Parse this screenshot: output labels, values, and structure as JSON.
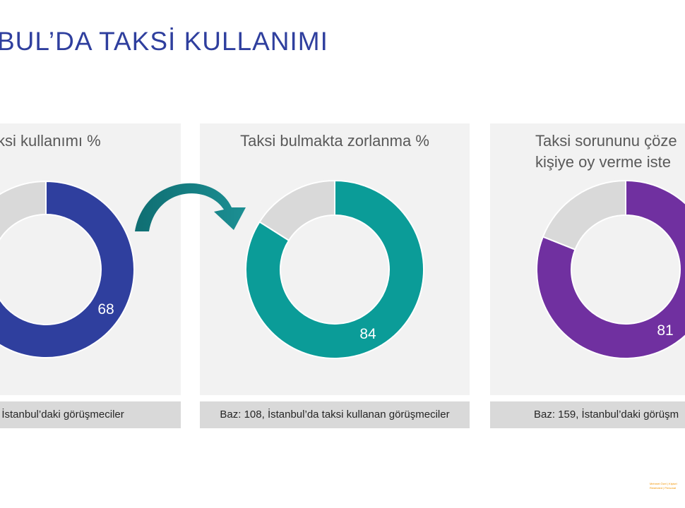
{
  "title": "BUL’DA TAKSİ KULLANIMI",
  "chart_data": [
    {
      "type": "pie",
      "title": "ksi kullanımı %",
      "values": [
        68,
        32
      ],
      "value_label": "68",
      "colors": [
        "#2f3f9e",
        "#d9d9d9"
      ],
      "base": ", İstanbul’daki görüşmeciler"
    },
    {
      "type": "pie",
      "title": "Taksi bulmakta zorlanma %",
      "values": [
        84,
        16
      ],
      "value_label": "84",
      "colors": [
        "#0b9c98",
        "#d9d9d9"
      ],
      "base": "Baz: 108, İstanbul’da taksi kullanan görüşmeciler"
    },
    {
      "type": "pie",
      "title": "Taksi sorununu çöze\nkişiye oy verme iste",
      "title_lines": [
        "Taksi sorununu çöze",
        "kişiye oy verme iste"
      ],
      "values": [
        81,
        19
      ],
      "value_label": "81",
      "colors": [
        "#7030a0",
        "#d9d9d9"
      ],
      "base": "Baz: 159, İstanbul’daki görüşm"
    }
  ],
  "arrow_color": "#157a7a",
  "footer": [
    "Mehmet Özel | Kişisel",
    "Restricted | Personal"
  ]
}
